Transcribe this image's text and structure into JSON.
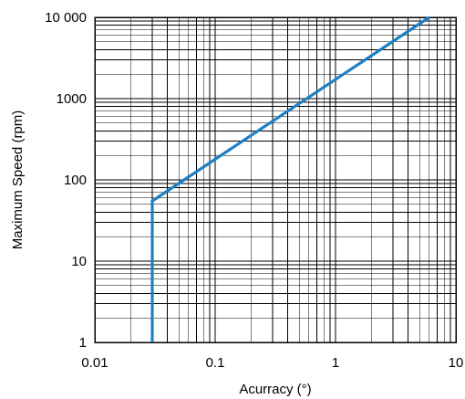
{
  "chart_data": {
    "type": "line",
    "title": "",
    "xlabel": "Acurracy (°)",
    "ylabel": "Maximum Speed (rpm)",
    "x_scale": "log",
    "y_scale": "log",
    "xlim": [
      0.01,
      10
    ],
    "ylim": [
      1,
      10000
    ],
    "grid": true,
    "x_ticks": [
      {
        "value": 0.01,
        "label": "0.01"
      },
      {
        "value": 0.1,
        "label": "0.1"
      },
      {
        "value": 1,
        "label": "1"
      },
      {
        "value": 10,
        "label": "10"
      }
    ],
    "y_ticks": [
      {
        "value": 1,
        "label": "1"
      },
      {
        "value": 10,
        "label": "10"
      },
      {
        "value": 100,
        "label": "100"
      },
      {
        "value": 1000,
        "label": "1000"
      },
      {
        "value": 10000,
        "label": "10 000"
      }
    ],
    "series": [
      {
        "color": "#1f7fc3",
        "x": [
          0.03,
          0.03,
          6
        ],
        "y": [
          1,
          55,
          10000
        ]
      }
    ]
  }
}
